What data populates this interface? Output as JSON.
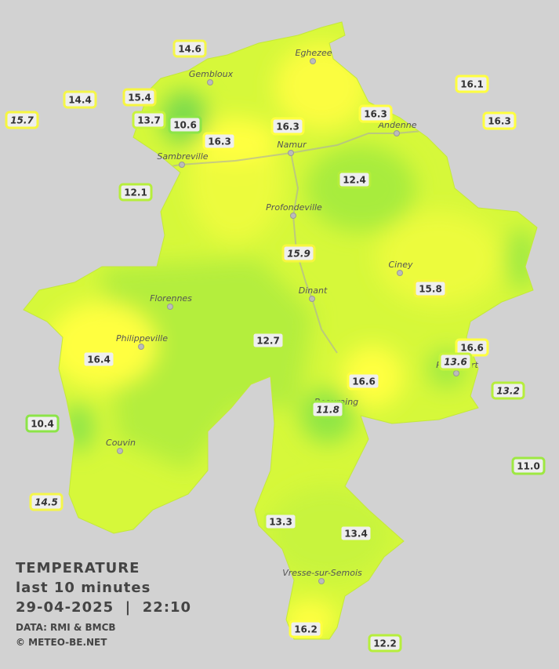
{
  "title": {
    "heading": "TEMPERATURE",
    "period": "last 10 minutes",
    "datetime": "29-04-2025  |  22:10",
    "source": "DATA: RMI & BMCB",
    "credit": "© METEO-BE.NET"
  },
  "towns": [
    {
      "name": "Eghezee"
    },
    {
      "name": "Gembloux"
    },
    {
      "name": "Andenne"
    },
    {
      "name": "Namur"
    },
    {
      "name": "Sambreville"
    },
    {
      "name": "Profondeville"
    },
    {
      "name": "Ciney"
    },
    {
      "name": "Dinant"
    },
    {
      "name": "Florennes"
    },
    {
      "name": "Philippeville"
    },
    {
      "name": "Rochefort"
    },
    {
      "name": "Beauraing"
    },
    {
      "name": "Couvin"
    },
    {
      "name": "Vresse-sur-Semois"
    }
  ],
  "stations": [
    {
      "value": "14.6",
      "color": "#f4f64a",
      "italic": false
    },
    {
      "value": "14.4",
      "color": "#f4f64a",
      "italic": false
    },
    {
      "value": "15.4",
      "color": "#f6f640",
      "italic": false
    },
    {
      "value": "15.7",
      "color": "#f6f640",
      "italic": true
    },
    {
      "value": "13.7",
      "color": "#c8f43c",
      "italic": false
    },
    {
      "value": "10.6",
      "color": "#8ce448",
      "italic": false
    },
    {
      "value": "16.3",
      "color": "#ffff40",
      "italic": false
    },
    {
      "value": "16.3",
      "color": "#ffff40",
      "italic": false
    },
    {
      "value": "16.3",
      "color": "#ffff40",
      "italic": false
    },
    {
      "value": "16.1",
      "color": "#ffff40",
      "italic": false
    },
    {
      "value": "16.3",
      "color": "#ffff40",
      "italic": false
    },
    {
      "value": "12.1",
      "color": "#b6ee3c",
      "italic": false
    },
    {
      "value": "12.4",
      "color": "#b6ee3c",
      "italic": false
    },
    {
      "value": "15.9",
      "color": "#f6f640",
      "italic": true
    },
    {
      "value": "15.8",
      "color": "#f6f640",
      "italic": false
    },
    {
      "value": "12.7",
      "color": "#b6ee3c",
      "italic": false
    },
    {
      "value": "16.4",
      "color": "#ffff40",
      "italic": false
    },
    {
      "value": "16.6",
      "color": "#ffff40",
      "italic": false
    },
    {
      "value": "13.6",
      "color": "#c8f43c",
      "italic": true
    },
    {
      "value": "13.2",
      "color": "#b6ee3c",
      "italic": true
    },
    {
      "value": "16.6",
      "color": "#ffff40",
      "italic": false
    },
    {
      "value": "11.8",
      "color": "#9ee842",
      "italic": true
    },
    {
      "value": "10.4",
      "color": "#8ce448",
      "italic": false
    },
    {
      "value": "11.0",
      "color": "#9ee842",
      "italic": false
    },
    {
      "value": "14.5",
      "color": "#f4f64a",
      "italic": true
    },
    {
      "value": "13.3",
      "color": "#c8f43c",
      "italic": false
    },
    {
      "value": "13.4",
      "color": "#c8f43c",
      "italic": false
    },
    {
      "value": "16.2",
      "color": "#ffff40",
      "italic": false
    },
    {
      "value": "12.2",
      "color": "#b6ee3c",
      "italic": false
    }
  ]
}
